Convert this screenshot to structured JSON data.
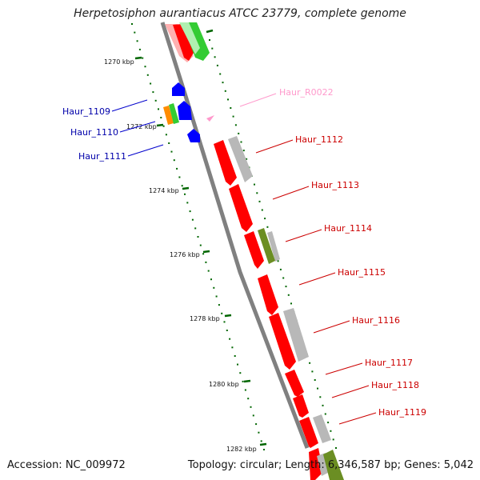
{
  "title": "Herpetosiphon aurantiacus ATCC 23779, complete genome",
  "ticks": [
    "1270 kbp",
    "1272 kbp",
    "1274 kbp",
    "1276 kbp",
    "1278 kbp",
    "1280 kbp",
    "1282 kbp"
  ],
  "gene_labels": {
    "left": [
      "Haur_1109",
      "Haur_1110",
      "Haur_1111"
    ],
    "right": [
      "Haur_R0022",
      "Haur_1112",
      "Haur_1113",
      "Haur_1114",
      "Haur_1115",
      "Haur_1116",
      "Haur_1117",
      "Haur_1118",
      "Haur_1119"
    ]
  },
  "footer": {
    "accession": "Accession: NC_009972",
    "summary": "Topology: circular; Length: 6,346,587 bp; Genes: 5,042"
  },
  "colors": {
    "cds": "#ff0000",
    "cds_light": "#ffb0b0",
    "gray": "#b8b8b8",
    "green": "#33cc33",
    "light_green": "#b0f0b0",
    "olive": "#6b8e23",
    "blue": "#0000ff",
    "orange": "#ff8c00",
    "pink": "#ff99cc",
    "tick_green": "#006600",
    "backbone": "#808080"
  }
}
